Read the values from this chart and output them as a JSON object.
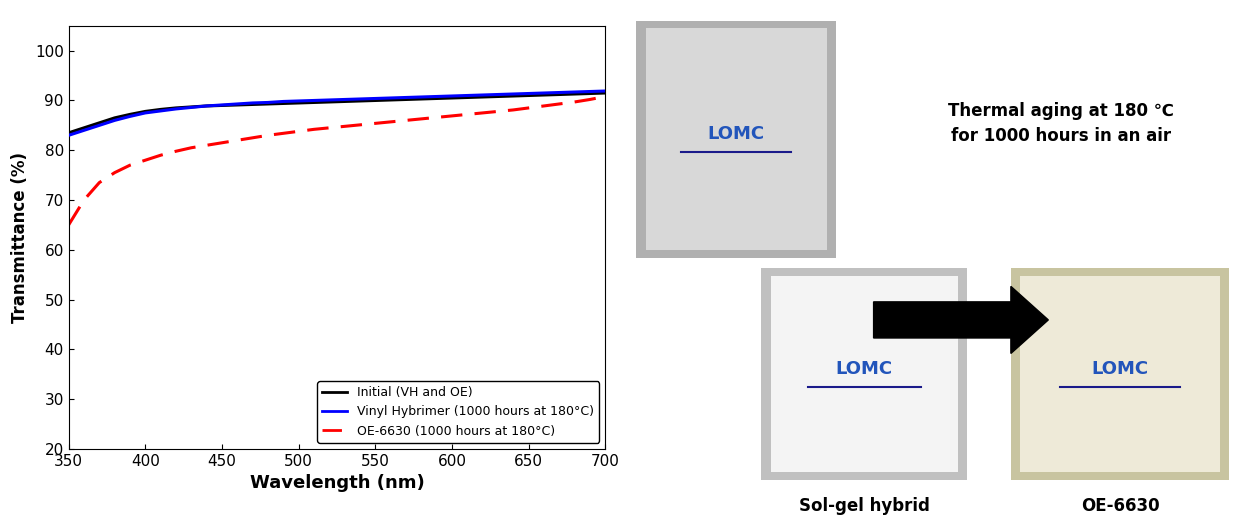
{
  "title": "",
  "xlabel": "Wavelength (nm)",
  "ylabel": "Transmittance (%)",
  "xlim": [
    350,
    700
  ],
  "ylim": [
    20,
    105
  ],
  "yticks": [
    20,
    30,
    40,
    50,
    60,
    70,
    80,
    90,
    100
  ],
  "xticks": [
    350,
    400,
    450,
    500,
    550,
    600,
    650,
    700
  ],
  "line1_label": "Initial (VH and OE)",
  "line2_label": "Vinyl Hybrimer (1000 hours at 180°C)",
  "line3_label": "OE-6630 (1000 hours at 180°C)",
  "line1_color": "#000000",
  "line2_color": "#0000ff",
  "line3_color": "#ff0000",
  "bg_color": "#ffffff",
  "annotation_text": "Thermal aging at 180 ℃\nfor 1000 hours in an air",
  "label_solgel": "Sol-gel hybrid",
  "label_oe": "OE-6630",
  "wavelengths": [
    350,
    360,
    370,
    380,
    390,
    400,
    410,
    420,
    430,
    440,
    450,
    460,
    470,
    480,
    490,
    500,
    510,
    520,
    530,
    540,
    550,
    560,
    570,
    580,
    590,
    600,
    610,
    620,
    630,
    640,
    650,
    660,
    670,
    680,
    690,
    700
  ],
  "initial": [
    83.5,
    84.5,
    85.5,
    86.5,
    87.2,
    87.8,
    88.2,
    88.5,
    88.7,
    88.9,
    89.0,
    89.1,
    89.2,
    89.3,
    89.4,
    89.5,
    89.6,
    89.7,
    89.8,
    89.9,
    90.0,
    90.1,
    90.2,
    90.3,
    90.4,
    90.5,
    90.6,
    90.7,
    90.8,
    90.9,
    91.0,
    91.1,
    91.2,
    91.3,
    91.4,
    91.5
  ],
  "vinyl_hybrimer": [
    83.0,
    84.0,
    85.0,
    86.0,
    86.8,
    87.5,
    87.9,
    88.3,
    88.6,
    88.9,
    89.1,
    89.3,
    89.5,
    89.6,
    89.8,
    89.9,
    90.0,
    90.1,
    90.2,
    90.3,
    90.4,
    90.5,
    90.6,
    90.7,
    90.8,
    90.9,
    91.0,
    91.1,
    91.2,
    91.3,
    91.4,
    91.5,
    91.6,
    91.7,
    91.8,
    91.9
  ],
  "oe6630": [
    65.0,
    70.0,
    73.5,
    75.5,
    77.0,
    78.0,
    79.0,
    79.8,
    80.5,
    81.0,
    81.5,
    82.0,
    82.5,
    83.0,
    83.4,
    83.8,
    84.2,
    84.5,
    84.8,
    85.1,
    85.4,
    85.7,
    86.0,
    86.3,
    86.6,
    86.9,
    87.2,
    87.5,
    87.8,
    88.1,
    88.5,
    88.9,
    89.3,
    89.7,
    90.2,
    90.8
  ],
  "photo_top_color": "#c8c8c8",
  "photo_top_inner": "#e8e8e8",
  "photo_bl_color": "#f0f0f0",
  "photo_br_color": "#ede8d0",
  "lomc_color": "#2255bb",
  "lomc_underline": "#1a1a8a"
}
